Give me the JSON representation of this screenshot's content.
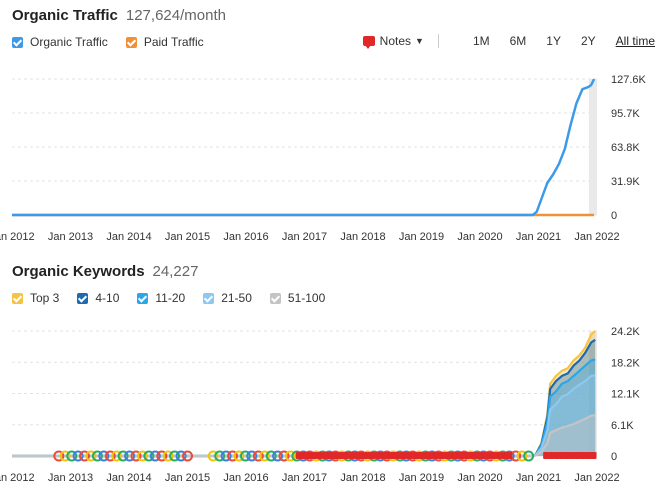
{
  "traffic": {
    "title": "Organic Traffic",
    "value": "127,624/month",
    "legend": [
      {
        "label": "Organic Traffic",
        "color": "#3d9ae8"
      },
      {
        "label": "Paid Traffic",
        "color": "#f0913a"
      }
    ],
    "notes_label": "Notes",
    "ranges": [
      "1M",
      "6M",
      "1Y",
      "2Y",
      "All time"
    ],
    "active_range": "All time"
  },
  "keywords": {
    "title": "Organic Keywords",
    "value": "24,227",
    "legend": [
      {
        "label": "Top 3",
        "color": "#f6c343"
      },
      {
        "label": "4-10",
        "color": "#1d6ab0"
      },
      {
        "label": "11-20",
        "color": "#2ba6ea"
      },
      {
        "label": "21-50",
        "color": "#8cc8f0"
      },
      {
        "label": "51-100",
        "color": "#c4c4c4"
      }
    ]
  },
  "x_ticks": [
    "Jan 2012",
    "Jan 2013",
    "Jan 2014",
    "Jan 2015",
    "Jan 2016",
    "Jan 2017",
    "Jan 2018",
    "Jan 2019",
    "Jan 2020",
    "Jan 2021",
    "Jan 2022"
  ],
  "chart_data": [
    {
      "type": "line",
      "title": "Organic Traffic",
      "x": [
        2012.0,
        2020.9,
        2020.97,
        2021.05,
        2021.15,
        2021.25,
        2021.35,
        2021.45,
        2021.55,
        2021.65,
        2021.75,
        2021.85,
        2021.9,
        2021.95
      ],
      "series": [
        {
          "name": "Organic Traffic",
          "values": [
            0,
            0,
            3000,
            15000,
            30000,
            38000,
            48000,
            62000,
            85000,
            105000,
            118000,
            120000,
            122000,
            127624
          ]
        },
        {
          "name": "Paid Traffic",
          "values": [
            0,
            0,
            0,
            0,
            0,
            0,
            0,
            0,
            0,
            0,
            0,
            0,
            0,
            0
          ]
        }
      ],
      "yticks": [
        "0",
        "31.9K",
        "63.8K",
        "95.7K",
        "127.6K"
      ],
      "ylim": [
        0,
        127600
      ],
      "xlim": [
        2012.0,
        2022.0
      ]
    },
    {
      "type": "area",
      "title": "Organic Keywords",
      "x": [
        2012.0,
        2020.9,
        2020.95,
        2021.05,
        2021.15,
        2021.2,
        2021.3,
        2021.4,
        2021.5,
        2021.6,
        2021.7,
        2021.8,
        2021.9,
        2021.97
      ],
      "series": [
        {
          "name": "Top 3",
          "values": [
            0,
            0,
            300,
            2500,
            8000,
            14000,
            15500,
            16500,
            17000,
            18500,
            19500,
            21000,
            23500,
            24227
          ]
        },
        {
          "name": "4-10",
          "values": [
            0,
            0,
            280,
            2300,
            7500,
            13000,
            14500,
            15500,
            16000,
            17500,
            18500,
            20000,
            22000,
            22500
          ]
        },
        {
          "name": "11-20",
          "values": [
            0,
            0,
            250,
            2000,
            6500,
            11500,
            12500,
            14000,
            14500,
            15500,
            16500,
            17500,
            18500,
            18700
          ]
        },
        {
          "name": "21-50",
          "values": [
            0,
            0,
            200,
            1500,
            5000,
            9000,
            10000,
            11500,
            12000,
            13000,
            13800,
            14500,
            15500,
            15600
          ]
        },
        {
          "name": "51-100",
          "values": [
            0,
            0,
            100,
            800,
            2500,
            4500,
            5000,
            5500,
            5800,
            6200,
            6700,
            7200,
            7800,
            7900
          ]
        }
      ],
      "yticks": [
        "0",
        "6.1K",
        "12.1K",
        "18.2K",
        "24.2K"
      ],
      "ylim": [
        0,
        24200
      ],
      "xlim": [
        2012.0,
        2022.0
      ]
    }
  ]
}
